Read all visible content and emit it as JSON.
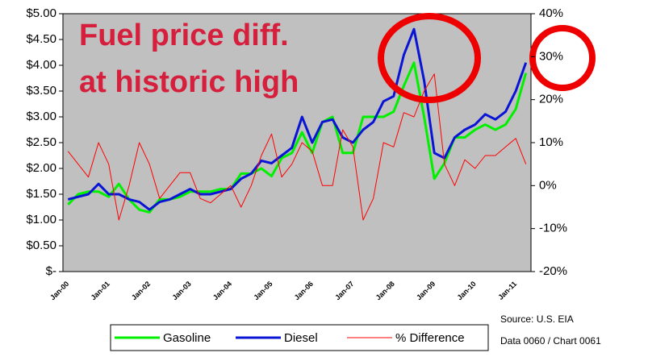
{
  "chart_data": {
    "type": "line",
    "annotations": [
      "Fuel price diff.",
      "at historic high"
    ],
    "source": [
      "Source: U.S. EIA",
      "Data 0060 / Chart 0061"
    ],
    "categories": [
      "Jan-00",
      null,
      null,
      null,
      "Jan-01",
      null,
      null,
      null,
      "Jan-02",
      null,
      null,
      null,
      "Jan-03",
      null,
      null,
      null,
      "Jan-04",
      null,
      null,
      null,
      "Jan-05",
      null,
      null,
      null,
      "Jan-06",
      null,
      null,
      null,
      "Jan-07",
      null,
      null,
      null,
      "Jan-08",
      null,
      null,
      null,
      "Jan-09",
      null,
      null,
      null,
      "Jan-10",
      null,
      null,
      null,
      "Jan-11",
      null
    ],
    "series": [
      {
        "name": "Gasoline",
        "color": "#00f000",
        "values": [
          1.3,
          1.5,
          1.55,
          1.55,
          1.45,
          1.7,
          1.4,
          1.2,
          1.15,
          1.4,
          1.4,
          1.45,
          1.55,
          1.55,
          1.55,
          1.6,
          1.6,
          1.9,
          1.9,
          2.0,
          1.85,
          2.2,
          2.3,
          2.7,
          2.3,
          2.9,
          3.0,
          2.3,
          2.3,
          3.0,
          3.0,
          3.0,
          3.1,
          3.6,
          4.05,
          3.0,
          1.8,
          2.1,
          2.6,
          2.6,
          2.75,
          2.85,
          2.75,
          2.85,
          3.15,
          3.85
        ]
      },
      {
        "name": "Diesel",
        "color": "#0a14d4",
        "values": [
          1.4,
          1.45,
          1.5,
          1.7,
          1.5,
          1.5,
          1.4,
          1.35,
          1.2,
          1.35,
          1.4,
          1.5,
          1.6,
          1.5,
          1.5,
          1.55,
          1.6,
          1.8,
          1.9,
          2.15,
          2.1,
          2.25,
          2.4,
          3.0,
          2.5,
          2.9,
          2.95,
          2.6,
          2.5,
          2.75,
          2.9,
          3.3,
          3.4,
          4.2,
          4.7,
          3.7,
          2.3,
          2.2,
          2.6,
          2.75,
          2.85,
          3.05,
          2.95,
          3.1,
          3.5,
          4.05
        ]
      },
      {
        "name": "% Difference",
        "color": "#ff0000",
        "axis": "y2",
        "values": [
          8,
          5,
          2,
          10,
          5,
          -8,
          0,
          10,
          5,
          -3,
          0,
          3,
          3,
          -3,
          -4,
          -2,
          0,
          -5,
          0,
          7,
          12,
          2,
          5,
          10,
          8,
          0,
          0,
          13,
          9,
          -8,
          -3,
          10,
          9,
          17,
          16,
          22,
          26,
          5,
          0,
          6,
          4,
          7,
          7,
          9,
          11,
          5
        ]
      }
    ],
    "ylim": [
      0,
      5
    ],
    "yticks": [
      {
        "value": 0,
        "label": "$-"
      },
      {
        "value": 0.5,
        "label": "$0.50"
      },
      {
        "value": 1,
        "label": "$1.00"
      },
      {
        "value": 1.5,
        "label": "$1.50"
      },
      {
        "value": 2,
        "label": "$2.00"
      },
      {
        "value": 2.5,
        "label": "$2.50"
      },
      {
        "value": 3,
        "label": "$3.00"
      },
      {
        "value": 3.5,
        "label": "$3.50"
      },
      {
        "value": 4,
        "label": "$4.00"
      },
      {
        "value": 4.5,
        "label": "$4.50"
      },
      {
        "value": 5,
        "label": "$5.00"
      }
    ],
    "y2lim": [
      -20,
      40
    ],
    "y2ticks": [
      {
        "value": -20,
        "label": "-20%"
      },
      {
        "value": -10,
        "label": "-10%"
      },
      {
        "value": 0,
        "label": "0%"
      },
      {
        "value": 10,
        "label": "10%"
      },
      {
        "value": 20,
        "label": "20%"
      },
      {
        "value": 30,
        "label": "30%"
      },
      {
        "value": 40,
        "label": "40%"
      }
    ],
    "grid": false,
    "legend": "bottom"
  }
}
